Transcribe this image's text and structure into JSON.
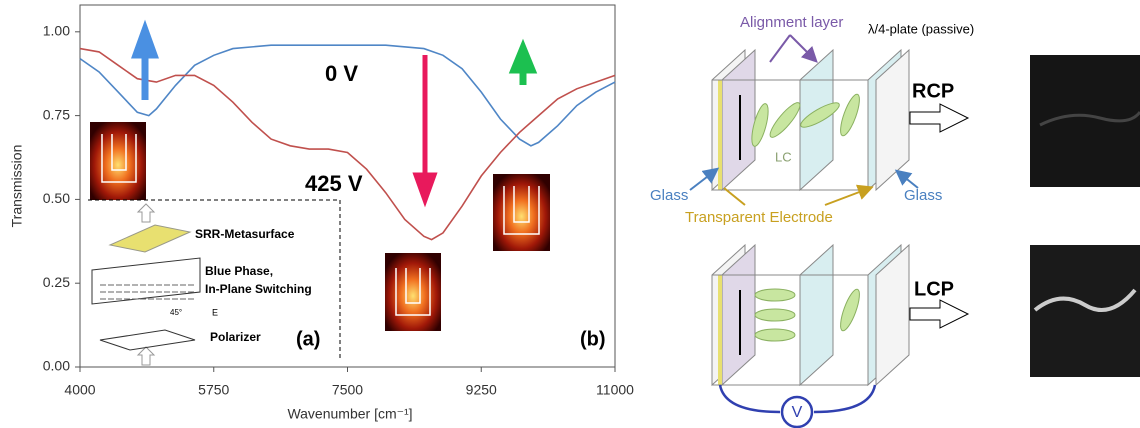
{
  "chart_data": {
    "type": "line",
    "x_label": "Wavenumber [cm⁻¹]",
    "y_label": "Transmission",
    "xlim": [
      4000,
      11000
    ],
    "xticks": [
      4000,
      5750,
      7500,
      9250,
      11000
    ],
    "ylim": [
      0,
      1.08
    ],
    "yticks": [
      {
        "value": 0,
        "label": "0.00"
      },
      0.25,
      {
        "value": 0.5,
        "label": "0.50"
      },
      0.75,
      {
        "value": 1,
        "label": "1.00"
      }
    ],
    "series": [
      {
        "name": "0 V",
        "color": "#4f86c6",
        "x": [
          4000,
          4250,
          4500,
          4750,
          4900,
          5000,
          5250,
          5500,
          5750,
          6000,
          6500,
          7000,
          7500,
          8000,
          8500,
          8750,
          9000,
          9250,
          9500,
          9750,
          9900,
          10000,
          10250,
          10500,
          10750,
          11000
        ],
        "values": [
          0.92,
          0.88,
          0.82,
          0.76,
          0.75,
          0.77,
          0.84,
          0.9,
          0.93,
          0.95,
          0.96,
          0.96,
          0.96,
          0.96,
          0.95,
          0.93,
          0.89,
          0.82,
          0.74,
          0.68,
          0.66,
          0.67,
          0.72,
          0.78,
          0.82,
          0.85
        ]
      },
      {
        "name": "425 V",
        "color": "#c0504d",
        "x": [
          4000,
          4250,
          4500,
          4750,
          5000,
          5250,
          5500,
          5750,
          6000,
          6250,
          6500,
          6750,
          7000,
          7250,
          7500,
          7750,
          8000,
          8250,
          8500,
          8600,
          8750,
          9000,
          9250,
          9500,
          9750,
          10000,
          10250,
          10500,
          10750,
          11000
        ],
        "values": [
          0.95,
          0.94,
          0.9,
          0.86,
          0.85,
          0.87,
          0.87,
          0.84,
          0.79,
          0.73,
          0.68,
          0.66,
          0.65,
          0.65,
          0.64,
          0.59,
          0.52,
          0.44,
          0.39,
          0.38,
          0.4,
          0.48,
          0.57,
          0.64,
          0.7,
          0.75,
          0.8,
          0.83,
          0.85,
          0.87
        ]
      }
    ],
    "panel_labels": [
      "(a)",
      "(b)"
    ],
    "inset_labels": [
      "SRR-Metasurface",
      "Blue Phase,",
      "In-Plane Switching",
      "45°",
      "E",
      "Polarizer"
    ]
  },
  "diagram": {
    "labels": {
      "alignment": "Alignment layer",
      "plate": "λ/4-plate (passive)",
      "rcp": "RCP",
      "lc": "LC",
      "glass_left": "Glass",
      "glass_right": "Glass",
      "electrode": "Transparent Electrode",
      "lcp": "LCP",
      "voltage": "V"
    }
  }
}
